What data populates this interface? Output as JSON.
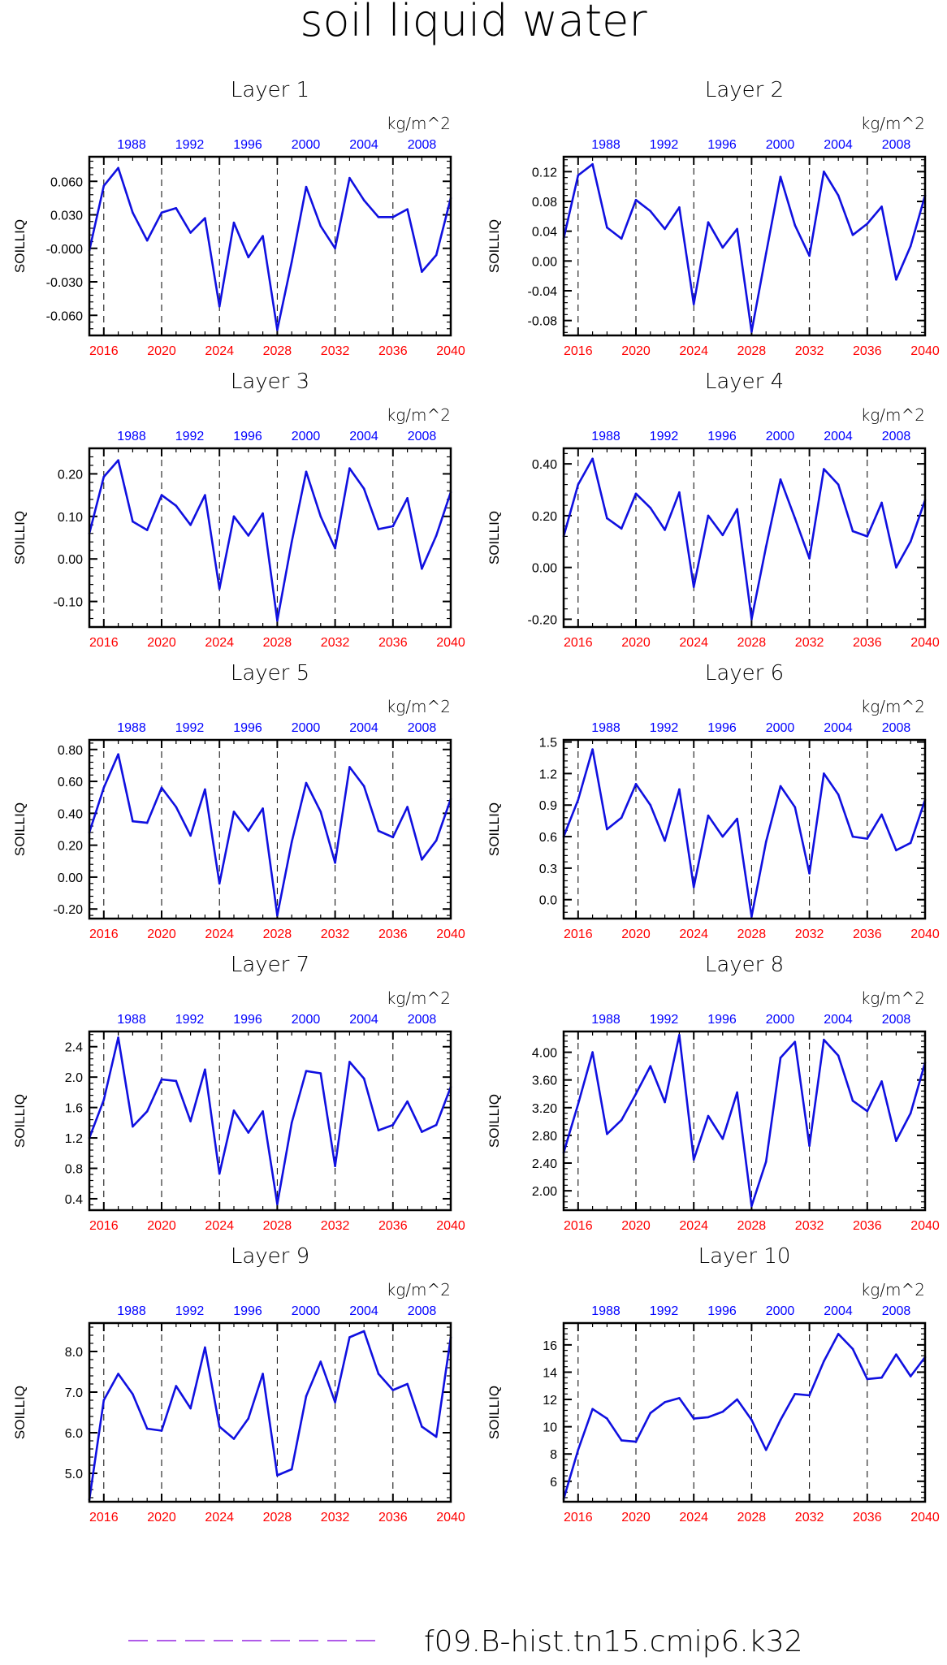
{
  "title": "soil liquid water",
  "legend": {
    "label": "f09.B-hist.tn15.cmip6.k32",
    "line_color": "#b05ce8",
    "line_style": "dashed"
  },
  "colors": {
    "series": "#1010e0",
    "top_axis": "#0000ff",
    "bottom_axis": "#ff0000",
    "frame": "#000000",
    "vline": "#000000"
  },
  "chart_data": [
    {
      "type": "line",
      "title": "Layer 1",
      "unit": "kg/m^2",
      "ylabel": "SOILLIQ",
      "yticks": [
        "0.060",
        "0.030",
        "-0.000",
        "-0.030",
        "-0.060"
      ],
      "ytick_values": [
        0.06,
        0.03,
        0.0,
        -0.03,
        -0.06
      ],
      "ylim": [
        -0.078,
        0.082
      ],
      "xlim": [
        2015,
        2040
      ],
      "xticks_bottom": [
        "2016",
        "2020",
        "2024",
        "2028",
        "2032",
        "2036",
        "2040"
      ],
      "xticks_top": [
        "1988",
        "1992",
        "1996",
        "2000",
        "2004",
        "2008"
      ],
      "vlines": [
        2016,
        2020,
        2024,
        2028,
        2032,
        2036
      ],
      "x": [
        2015,
        2016,
        2017,
        2018,
        2019,
        2020,
        2021,
        2022,
        2023,
        2024,
        2025,
        2026,
        2027,
        2028,
        2029,
        2030,
        2031,
        2032,
        2033,
        2034,
        2035,
        2036,
        2037,
        2038,
        2039,
        2040
      ],
      "series": [
        {
          "values": [
            -0.002,
            0.056,
            0.072,
            0.032,
            0.007,
            0.032,
            0.036,
            0.014,
            0.027,
            -0.052,
            0.023,
            -0.008,
            0.011,
            -0.073,
            -0.012,
            0.055,
            0.02,
            0.0,
            0.063,
            0.043,
            0.028,
            0.028,
            0.035,
            -0.021,
            -0.006,
            0.045
          ]
        }
      ]
    },
    {
      "type": "line",
      "title": "Layer 2",
      "unit": "kg/m^2",
      "ylabel": "SOILLIQ",
      "yticks": [
        "0.12",
        "0.08",
        "0.04",
        "0.00",
        "-0.04",
        "-0.08"
      ],
      "ytick_values": [
        0.12,
        0.08,
        0.04,
        0.0,
        -0.04,
        -0.08
      ],
      "ylim": [
        -0.1,
        0.14
      ],
      "xlim": [
        2015,
        2040
      ],
      "xticks_bottom": [
        "2016",
        "2020",
        "2024",
        "2028",
        "2032",
        "2036",
        "2040"
      ],
      "xticks_top": [
        "1988",
        "1992",
        "1996",
        "2000",
        "2004",
        "2008"
      ],
      "vlines": [
        2016,
        2020,
        2024,
        2028,
        2032,
        2036
      ],
      "x": [
        2015,
        2016,
        2017,
        2018,
        2019,
        2020,
        2021,
        2022,
        2023,
        2024,
        2025,
        2026,
        2027,
        2028,
        2029,
        2030,
        2031,
        2032,
        2033,
        2034,
        2035,
        2036,
        2037,
        2038,
        2039,
        2040
      ],
      "series": [
        {
          "values": [
            0.03,
            0.115,
            0.13,
            0.045,
            0.03,
            0.082,
            0.067,
            0.043,
            0.072,
            -0.058,
            0.052,
            0.018,
            0.043,
            -0.095,
            0.01,
            0.113,
            0.048,
            0.007,
            0.12,
            0.088,
            0.035,
            0.05,
            0.073,
            -0.025,
            0.02,
            0.088
          ]
        }
      ]
    },
    {
      "type": "line",
      "title": "Layer 3",
      "unit": "kg/m^2",
      "ylabel": "SOILLIQ",
      "yticks": [
        "0.20",
        "0.10",
        "0.00",
        "-0.10"
      ],
      "ytick_values": [
        0.2,
        0.1,
        0.0,
        -0.1
      ],
      "ylim": [
        -0.16,
        0.26
      ],
      "xlim": [
        2015,
        2040
      ],
      "xticks_bottom": [
        "2016",
        "2020",
        "2024",
        "2028",
        "2032",
        "2036",
        "2040"
      ],
      "xticks_top": [
        "1988",
        "1992",
        "1996",
        "2000",
        "2004",
        "2008"
      ],
      "vlines": [
        2016,
        2020,
        2024,
        2028,
        2032,
        2036
      ],
      "x": [
        2015,
        2016,
        2017,
        2018,
        2019,
        2020,
        2021,
        2022,
        2023,
        2024,
        2025,
        2026,
        2027,
        2028,
        2029,
        2030,
        2031,
        2032,
        2033,
        2034,
        2035,
        2036,
        2037,
        2038,
        2039,
        2040
      ],
      "series": [
        {
          "values": [
            0.06,
            0.193,
            0.232,
            0.088,
            0.068,
            0.15,
            0.125,
            0.08,
            0.15,
            -0.07,
            0.1,
            0.055,
            0.107,
            -0.145,
            0.04,
            0.205,
            0.1,
            0.025,
            0.213,
            0.165,
            0.07,
            0.077,
            0.143,
            -0.023,
            0.055,
            0.157
          ]
        }
      ]
    },
    {
      "type": "line",
      "title": "Layer 4",
      "unit": "kg/m^2",
      "ylabel": "SOILLIQ",
      "yticks": [
        "0.40",
        "0.20",
        "0.00",
        "-0.20"
      ],
      "ytick_values": [
        0.4,
        0.2,
        0.0,
        -0.2
      ],
      "ylim": [
        -0.23,
        0.46
      ],
      "xlim": [
        2015,
        2040
      ],
      "xticks_bottom": [
        "2016",
        "2020",
        "2024",
        "2028",
        "2032",
        "2036",
        "2040"
      ],
      "xticks_top": [
        "1988",
        "1992",
        "1996",
        "2000",
        "2004",
        "2008"
      ],
      "vlines": [
        2016,
        2020,
        2024,
        2028,
        2032,
        2036
      ],
      "x": [
        2015,
        2016,
        2017,
        2018,
        2019,
        2020,
        2021,
        2022,
        2023,
        2024,
        2025,
        2026,
        2027,
        2028,
        2029,
        2030,
        2031,
        2032,
        2033,
        2034,
        2035,
        2036,
        2037,
        2038,
        2039,
        2040
      ],
      "series": [
        {
          "values": [
            0.12,
            0.32,
            0.42,
            0.19,
            0.15,
            0.285,
            0.23,
            0.145,
            0.29,
            -0.075,
            0.2,
            0.125,
            0.225,
            -0.2,
            0.08,
            0.34,
            0.19,
            0.035,
            0.38,
            0.32,
            0.14,
            0.12,
            0.25,
            0.0,
            0.1,
            0.26
          ]
        }
      ]
    },
    {
      "type": "line",
      "title": "Layer 5",
      "unit": "kg/m^2",
      "ylabel": "SOILLIQ",
      "yticks": [
        "0.80",
        "0.60",
        "0.40",
        "0.20",
        "0.00",
        "-0.20"
      ],
      "ytick_values": [
        0.8,
        0.6,
        0.4,
        0.2,
        0.0,
        -0.2
      ],
      "ylim": [
        -0.26,
        0.86
      ],
      "xlim": [
        2015,
        2040
      ],
      "xticks_bottom": [
        "2016",
        "2020",
        "2024",
        "2028",
        "2032",
        "2036",
        "2040"
      ],
      "xticks_top": [
        "1988",
        "1992",
        "1996",
        "2000",
        "2004",
        "2008"
      ],
      "vlines": [
        2016,
        2020,
        2024,
        2028,
        2032,
        2036
      ],
      "x": [
        2015,
        2016,
        2017,
        2018,
        2019,
        2020,
        2021,
        2022,
        2023,
        2024,
        2025,
        2026,
        2027,
        2028,
        2029,
        2030,
        2031,
        2032,
        2033,
        2034,
        2035,
        2036,
        2037,
        2038,
        2039,
        2040
      ],
      "series": [
        {
          "values": [
            0.28,
            0.56,
            0.77,
            0.35,
            0.34,
            0.56,
            0.44,
            0.26,
            0.55,
            -0.04,
            0.41,
            0.29,
            0.43,
            -0.24,
            0.22,
            0.59,
            0.41,
            0.09,
            0.69,
            0.57,
            0.29,
            0.25,
            0.44,
            0.11,
            0.23,
            0.49
          ]
        }
      ]
    },
    {
      "type": "line",
      "title": "Layer 6",
      "unit": "kg/m^2",
      "ylabel": "SOILLIQ",
      "yticks": [
        "1.5",
        "1.2",
        "0.9",
        "0.6",
        "0.3",
        "0.0"
      ],
      "ytick_values": [
        1.5,
        1.2,
        0.9,
        0.6,
        0.3,
        0.0
      ],
      "ylim": [
        -0.18,
        1.52
      ],
      "xlim": [
        2015,
        2040
      ],
      "xticks_bottom": [
        "2016",
        "2020",
        "2024",
        "2028",
        "2032",
        "2036",
        "2040"
      ],
      "xticks_top": [
        "1988",
        "1992",
        "1996",
        "2000",
        "2004",
        "2008"
      ],
      "vlines": [
        2016,
        2020,
        2024,
        2028,
        2032,
        2036
      ],
      "x": [
        2015,
        2016,
        2017,
        2018,
        2019,
        2020,
        2021,
        2022,
        2023,
        2024,
        2025,
        2026,
        2027,
        2028,
        2029,
        2030,
        2031,
        2032,
        2033,
        2034,
        2035,
        2036,
        2037,
        2038,
        2039,
        2040
      ],
      "series": [
        {
          "values": [
            0.6,
            0.95,
            1.43,
            0.67,
            0.78,
            1.1,
            0.9,
            0.56,
            1.05,
            0.12,
            0.8,
            0.6,
            0.77,
            -0.16,
            0.55,
            1.08,
            0.88,
            0.25,
            1.2,
            1.0,
            0.6,
            0.58,
            0.81,
            0.47,
            0.54,
            0.95
          ]
        }
      ]
    },
    {
      "type": "line",
      "title": "Layer 7",
      "unit": "kg/m^2",
      "ylabel": "SOILLIQ",
      "yticks": [
        "2.4",
        "2.0",
        "1.6",
        "1.2",
        "0.8",
        "0.4"
      ],
      "ytick_values": [
        2.4,
        2.0,
        1.6,
        1.2,
        0.8,
        0.4
      ],
      "ylim": [
        0.25,
        2.6
      ],
      "xlim": [
        2015,
        2040
      ],
      "xticks_bottom": [
        "2016",
        "2020",
        "2024",
        "2028",
        "2032",
        "2036",
        "2040"
      ],
      "xticks_top": [
        "1988",
        "1992",
        "1996",
        "2000",
        "2004",
        "2008"
      ],
      "vlines": [
        2016,
        2020,
        2024,
        2028,
        2032,
        2036
      ],
      "x": [
        2015,
        2016,
        2017,
        2018,
        2019,
        2020,
        2021,
        2022,
        2023,
        2024,
        2025,
        2026,
        2027,
        2028,
        2029,
        2030,
        2031,
        2032,
        2033,
        2034,
        2035,
        2036,
        2037,
        2038,
        2039,
        2040
      ],
      "series": [
        {
          "values": [
            1.2,
            1.7,
            2.52,
            1.35,
            1.55,
            1.97,
            1.95,
            1.42,
            2.1,
            0.73,
            1.56,
            1.27,
            1.55,
            0.33,
            1.4,
            2.08,
            2.05,
            0.83,
            2.2,
            1.98,
            1.3,
            1.37,
            1.68,
            1.28,
            1.37,
            1.87
          ]
        }
      ]
    },
    {
      "type": "line",
      "title": "Layer 8",
      "unit": "kg/m^2",
      "ylabel": "SOILLIQ",
      "yticks": [
        "4.00",
        "3.60",
        "3.20",
        "2.80",
        "2.40",
        "2.00"
      ],
      "ytick_values": [
        4.0,
        3.6,
        3.2,
        2.8,
        2.4,
        2.0
      ],
      "ylim": [
        1.72,
        4.3
      ],
      "xlim": [
        2015,
        2040
      ],
      "xticks_bottom": [
        "2016",
        "2020",
        "2024",
        "2028",
        "2032",
        "2036",
        "2040"
      ],
      "xticks_top": [
        "1988",
        "1992",
        "1996",
        "2000",
        "2004",
        "2008"
      ],
      "vlines": [
        2016,
        2020,
        2024,
        2028,
        2032,
        2036
      ],
      "x": [
        2015,
        2016,
        2017,
        2018,
        2019,
        2020,
        2021,
        2022,
        2023,
        2024,
        2025,
        2026,
        2027,
        2028,
        2029,
        2030,
        2031,
        2032,
        2033,
        2034,
        2035,
        2036,
        2037,
        2038,
        2039,
        2040
      ],
      "series": [
        {
          "values": [
            2.55,
            3.25,
            4.0,
            2.82,
            3.02,
            3.4,
            3.8,
            3.28,
            4.25,
            2.45,
            3.08,
            2.75,
            3.42,
            1.78,
            2.42,
            3.92,
            4.15,
            2.65,
            4.18,
            3.95,
            3.3,
            3.15,
            3.58,
            2.72,
            3.12,
            3.85
          ]
        }
      ]
    },
    {
      "type": "line",
      "title": "Layer 9",
      "unit": "kg/m^2",
      "ylabel": "SOILLIQ",
      "yticks": [
        "8.0",
        "7.0",
        "6.0",
        "5.0"
      ],
      "ytick_values": [
        8.0,
        7.0,
        6.0,
        5.0
      ],
      "ylim": [
        4.3,
        8.7
      ],
      "xlim": [
        2015,
        2040
      ],
      "xticks_bottom": [
        "2016",
        "2020",
        "2024",
        "2028",
        "2032",
        "2036",
        "2040"
      ],
      "xticks_top": [
        "1988",
        "1992",
        "1996",
        "2000",
        "2004",
        "2008"
      ],
      "vlines": [
        2016,
        2020,
        2024,
        2028,
        2032,
        2036
      ],
      "x": [
        2015,
        2016,
        2017,
        2018,
        2019,
        2020,
        2021,
        2022,
        2023,
        2024,
        2025,
        2026,
        2027,
        2028,
        2029,
        2030,
        2031,
        2032,
        2033,
        2034,
        2035,
        2036,
        2037,
        2038,
        2039,
        2040
      ],
      "series": [
        {
          "values": [
            4.35,
            6.8,
            7.45,
            6.95,
            6.1,
            6.05,
            7.15,
            6.6,
            8.1,
            6.15,
            5.85,
            6.35,
            7.45,
            4.95,
            5.1,
            6.9,
            7.75,
            6.75,
            8.35,
            8.5,
            7.45,
            7.05,
            7.2,
            6.15,
            5.9,
            8.35
          ]
        }
      ]
    },
    {
      "type": "line",
      "title": "Layer 10",
      "unit": "kg/m^2",
      "ylabel": "SOILLIQ",
      "yticks": [
        "16",
        "14",
        "12",
        "10",
        "8",
        "6"
      ],
      "ytick_values": [
        16,
        14,
        12,
        10,
        8,
        6
      ],
      "ylim": [
        4.5,
        17.6
      ],
      "xlim": [
        2015,
        2040
      ],
      "xticks_bottom": [
        "2016",
        "2020",
        "2024",
        "2028",
        "2032",
        "2036",
        "2040"
      ],
      "xticks_top": [
        "1988",
        "1992",
        "1996",
        "2000",
        "2004",
        "2008"
      ],
      "vlines": [
        2016,
        2020,
        2024,
        2028,
        2032,
        2036
      ],
      "x": [
        2015,
        2016,
        2017,
        2018,
        2019,
        2020,
        2021,
        2022,
        2023,
        2024,
        2025,
        2026,
        2027,
        2028,
        2029,
        2030,
        2031,
        2032,
        2033,
        2034,
        2035,
        2036,
        2037,
        2038,
        2039,
        2040
      ],
      "series": [
        {
          "values": [
            4.7,
            8.3,
            11.3,
            10.6,
            9.0,
            8.9,
            11.0,
            11.8,
            12.1,
            10.6,
            10.7,
            11.1,
            12.0,
            10.5,
            8.3,
            10.5,
            12.4,
            12.3,
            14.8,
            16.8,
            15.7,
            13.5,
            13.6,
            15.3,
            13.7,
            15.1
          ]
        }
      ]
    }
  ]
}
